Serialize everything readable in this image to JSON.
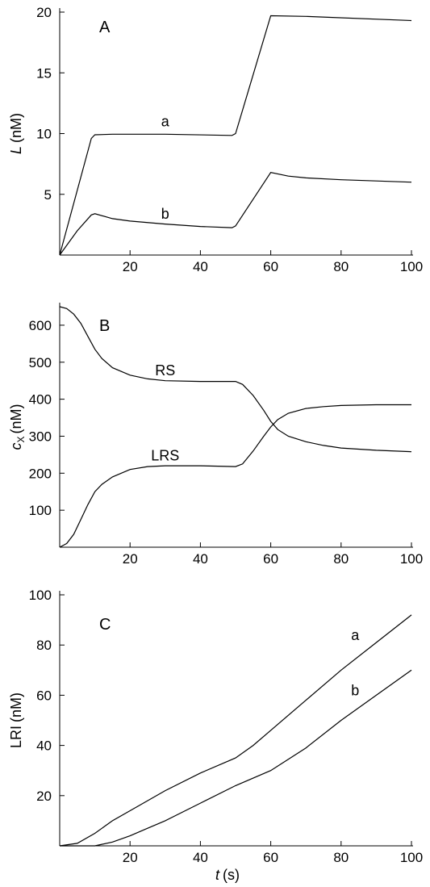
{
  "chart_data": [
    {
      "type": "line",
      "panel_label": "A",
      "ylabel_var": "L",
      "ylabel_unit": "(nM)",
      "xlim": [
        0,
        100
      ],
      "ylim": [
        0,
        20
      ],
      "xticks": [
        20,
        40,
        60,
        80,
        100
      ],
      "yticks": [
        5,
        10,
        15,
        20
      ],
      "series": [
        {
          "name": "a",
          "label_at": [
            30,
            10.6
          ],
          "x": [
            0,
            9,
            10,
            15,
            30,
            49,
            50,
            60,
            70,
            100
          ],
          "y": [
            0,
            9.6,
            9.9,
            9.95,
            9.95,
            9.85,
            10.0,
            19.7,
            19.65,
            19.3
          ]
        },
        {
          "name": "b",
          "label_at": [
            30,
            3.0
          ],
          "x": [
            0,
            5,
            9,
            10,
            15,
            20,
            30,
            40,
            49,
            50,
            55,
            60,
            65,
            70,
            80,
            90,
            100
          ],
          "y": [
            0,
            2.0,
            3.3,
            3.4,
            3.0,
            2.8,
            2.55,
            2.35,
            2.25,
            2.4,
            4.6,
            6.8,
            6.5,
            6.35,
            6.2,
            6.1,
            6.0
          ]
        }
      ]
    },
    {
      "type": "line",
      "panel_label": "B",
      "ylabel_var": "c",
      "ylabel_sub": "X",
      "ylabel_unit": "(nM)",
      "xlim": [
        0,
        100
      ],
      "ylim": [
        0,
        650
      ],
      "xticks": [
        20,
        40,
        60,
        80,
        100
      ],
      "yticks": [
        100,
        200,
        300,
        400,
        500,
        600
      ],
      "series": [
        {
          "name": "RS",
          "label_at": [
            30,
            465
          ],
          "x": [
            0,
            2,
            4,
            6,
            8,
            10,
            12,
            15,
            20,
            25,
            30,
            40,
            50,
            52,
            55,
            58,
            60,
            62,
            65,
            70,
            75,
            80,
            90,
            100
          ],
          "y": [
            650,
            645,
            630,
            605,
            570,
            535,
            510,
            485,
            465,
            455,
            450,
            448,
            448,
            440,
            410,
            370,
            340,
            318,
            300,
            285,
            275,
            268,
            262,
            258
          ]
        },
        {
          "name": "LRS",
          "label_at": [
            30,
            235
          ],
          "x": [
            0,
            2,
            4,
            6,
            8,
            10,
            12,
            15,
            20,
            25,
            30,
            40,
            50,
            52,
            55,
            58,
            60,
            62,
            65,
            70,
            75,
            80,
            90,
            100
          ],
          "y": [
            0,
            10,
            35,
            75,
            115,
            150,
            170,
            190,
            210,
            218,
            220,
            220,
            218,
            225,
            260,
            300,
            325,
            345,
            362,
            375,
            380,
            383,
            385,
            385
          ]
        }
      ]
    },
    {
      "type": "line",
      "panel_label": "C",
      "ylabel_var": "LRI",
      "ylabel_unit": "(nM)",
      "xlabel_var": "t",
      "xlabel_unit": "(s)",
      "xlim": [
        0,
        100
      ],
      "ylim": [
        0,
        100
      ],
      "xticks": [
        20,
        40,
        60,
        80,
        100
      ],
      "yticks": [
        20,
        40,
        60,
        80,
        100
      ],
      "series": [
        {
          "name": "a",
          "label_at": [
            84,
            82
          ],
          "x": [
            0,
            5,
            10,
            15,
            20,
            30,
            40,
            50,
            55,
            60,
            70,
            80,
            90,
            100
          ],
          "y": [
            0,
            1,
            5,
            10,
            14,
            22,
            29,
            35,
            40,
            46,
            58,
            70,
            81,
            92
          ]
        },
        {
          "name": "b",
          "label_at": [
            84,
            60
          ],
          "x": [
            0,
            10,
            15,
            20,
            25,
            30,
            40,
            50,
            60,
            70,
            80,
            90,
            100
          ],
          "y": [
            0,
            0,
            1.5,
            4,
            7,
            10,
            17,
            24,
            30,
            39,
            50,
            60,
            70
          ]
        }
      ]
    }
  ]
}
